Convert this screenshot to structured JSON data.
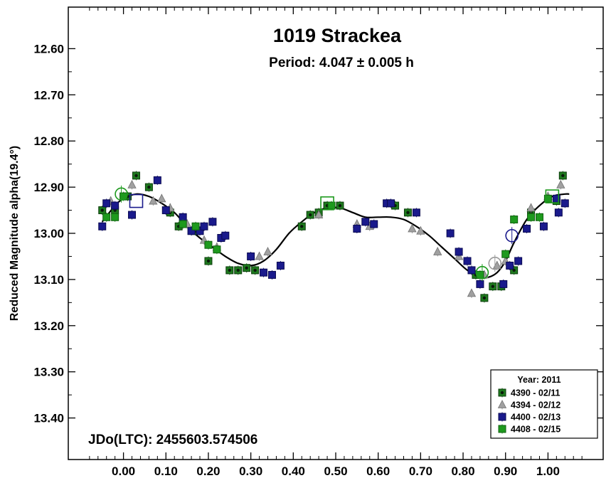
{
  "chart_data": {
    "type": "scatter",
    "title": "1019 Strackea",
    "subtitle": "Period: 4.047 ± 0.005 h",
    "xlabel": "",
    "ylabel": "Reduced Magnitude alpha(19.4°)",
    "annotation": "JDo(LTC): 2455603.574506",
    "xlim": [
      -0.13,
      1.13
    ],
    "ylim": [
      13.49,
      12.51
    ],
    "y_inverted": true,
    "grid": false,
    "legend_position": "bottom-right",
    "legend_title": "Year: 2011",
    "x_ticks": [
      "0.00",
      "0.10",
      "0.20",
      "0.30",
      "0.40",
      "0.50",
      "0.60",
      "0.70",
      "0.80",
      "0.90",
      "1.00"
    ],
    "x_tick_values": [
      0,
      0.1,
      0.2,
      0.3,
      0.4,
      0.5,
      0.6,
      0.7,
      0.8,
      0.9,
      1.0
    ],
    "y_ticks": [
      "12.60",
      "12.70",
      "12.80",
      "12.90",
      "13.00",
      "13.10",
      "13.20",
      "13.30",
      "13.40"
    ],
    "y_tick_values": [
      12.6,
      12.7,
      12.8,
      12.9,
      13.0,
      13.1,
      13.2,
      13.3,
      13.4
    ],
    "series": [
      {
        "name": "4390 - 02/11",
        "marker": "square-dot",
        "color": "#1e7a1e",
        "points": [
          [
            -0.05,
            12.95
          ],
          [
            -0.02,
            12.95
          ],
          [
            0.01,
            12.92
          ],
          [
            0.03,
            12.875
          ],
          [
            0.06,
            12.9
          ],
          [
            0.11,
            12.955
          ],
          [
            0.13,
            12.985
          ],
          [
            0.17,
            12.995
          ],
          [
            0.2,
            13.06
          ],
          [
            0.25,
            13.08
          ],
          [
            0.27,
            13.08
          ],
          [
            0.29,
            13.075
          ],
          [
            0.31,
            13.08
          ],
          [
            0.42,
            12.985
          ],
          [
            0.44,
            12.96
          ],
          [
            0.46,
            12.955
          ],
          [
            0.48,
            12.94
          ],
          [
            0.51,
            12.94
          ],
          [
            0.64,
            12.94
          ],
          [
            0.67,
            12.955
          ],
          [
            0.83,
            13.09
          ],
          [
            0.85,
            13.14
          ],
          [
            0.87,
            13.115
          ],
          [
            0.89,
            13.115
          ],
          [
            0.92,
            13.08
          ],
          [
            0.96,
            12.955
          ],
          [
            1.02,
            12.93
          ],
          [
            1.035,
            12.875
          ]
        ]
      },
      {
        "name": "4394 - 02/12",
        "marker": "triangle",
        "color": "#9a9a9a",
        "points": [
          [
            -0.03,
            12.93
          ],
          [
            0.02,
            12.895
          ],
          [
            0.07,
            12.93
          ],
          [
            0.09,
            12.925
          ],
          [
            0.11,
            12.945
          ],
          [
            0.15,
            12.98
          ],
          [
            0.19,
            13.015
          ],
          [
            0.22,
            13.03
          ],
          [
            0.32,
            13.05
          ],
          [
            0.34,
            13.04
          ],
          [
            0.46,
            12.96
          ],
          [
            0.55,
            12.98
          ],
          [
            0.58,
            12.985
          ],
          [
            0.68,
            12.99
          ],
          [
            0.7,
            12.995
          ],
          [
            0.74,
            13.04
          ],
          [
            0.79,
            13.05
          ],
          [
            0.82,
            13.13
          ],
          [
            0.85,
            13.09
          ],
          [
            0.88,
            13.07
          ],
          [
            0.9,
            13.06
          ],
          [
            0.96,
            12.945
          ],
          [
            1.0,
            12.92
          ],
          [
            1.03,
            12.895
          ]
        ]
      },
      {
        "name": "4400 - 02/13",
        "marker": "square",
        "color": "#1a1a8c",
        "points": [
          [
            -0.05,
            12.985
          ],
          [
            -0.04,
            12.935
          ],
          [
            -0.02,
            12.94
          ],
          [
            0.02,
            12.96
          ],
          [
            0.08,
            12.885
          ],
          [
            0.1,
            12.95
          ],
          [
            0.14,
            12.965
          ],
          [
            0.16,
            12.995
          ],
          [
            0.18,
            12.995
          ],
          [
            0.19,
            12.985
          ],
          [
            0.21,
            12.975
          ],
          [
            0.23,
            13.01
          ],
          [
            0.24,
            13.005
          ],
          [
            0.3,
            13.05
          ],
          [
            0.33,
            13.085
          ],
          [
            0.35,
            13.09
          ],
          [
            0.37,
            13.07
          ],
          [
            0.55,
            12.99
          ],
          [
            0.57,
            12.975
          ],
          [
            0.59,
            12.98
          ],
          [
            0.62,
            12.935
          ],
          [
            0.63,
            12.935
          ],
          [
            0.69,
            12.955
          ],
          [
            0.77,
            13.0
          ],
          [
            0.79,
            13.04
          ],
          [
            0.81,
            13.06
          ],
          [
            0.82,
            13.08
          ],
          [
            0.84,
            13.11
          ],
          [
            0.895,
            13.11
          ],
          [
            0.91,
            13.07
          ],
          [
            0.93,
            13.06
          ],
          [
            0.95,
            12.99
          ],
          [
            0.99,
            12.985
          ],
          [
            1.02,
            12.925
          ],
          [
            1.025,
            12.955
          ],
          [
            1.04,
            12.935
          ]
        ]
      },
      {
        "name": "4408 - 02/15",
        "marker": "square-light",
        "color": "#1e9a1e",
        "points": [
          [
            -0.04,
            12.965
          ],
          [
            -0.02,
            12.965
          ],
          [
            0.0,
            12.92
          ],
          [
            0.14,
            12.98
          ],
          [
            0.17,
            12.985
          ],
          [
            0.2,
            13.025
          ],
          [
            0.22,
            13.035
          ],
          [
            0.49,
            12.94
          ],
          [
            0.84,
            13.09
          ],
          [
            0.9,
            13.045
          ],
          [
            0.92,
            12.97
          ],
          [
            0.96,
            12.965
          ],
          [
            0.98,
            12.965
          ],
          [
            1.0,
            12.925
          ]
        ]
      }
    ],
    "fit_curve": {
      "x": [
        -0.05,
        -0.02,
        0.0,
        0.03,
        0.06,
        0.09,
        0.12,
        0.15,
        0.18,
        0.21,
        0.24,
        0.27,
        0.3,
        0.33,
        0.36,
        0.39,
        0.42,
        0.45,
        0.48,
        0.51,
        0.54,
        0.57,
        0.6,
        0.63,
        0.66,
        0.69,
        0.72,
        0.75,
        0.78,
        0.81,
        0.84,
        0.86,
        0.88,
        0.9,
        0.92,
        0.95,
        0.98,
        1.01,
        1.04,
        1.05
      ],
      "y": [
        12.975,
        12.94,
        12.925,
        12.915,
        12.92,
        12.935,
        12.955,
        12.985,
        13.01,
        13.03,
        13.05,
        13.065,
        13.07,
        13.06,
        13.035,
        13.0,
        12.975,
        12.955,
        12.945,
        12.945,
        12.955,
        12.965,
        12.965,
        12.965,
        12.97,
        12.985,
        13.005,
        13.03,
        13.055,
        13.08,
        13.095,
        13.095,
        13.085,
        13.06,
        13.02,
        12.97,
        12.94,
        12.92,
        12.915,
        12.915
      ]
    },
    "highlight_markers": [
      {
        "series": "4400 - 02/13",
        "shape": "square",
        "x": 0.03,
        "y": 12.93
      },
      {
        "series": "4408 - 02/15",
        "shape": "square",
        "x": 0.48,
        "y": 12.935
      },
      {
        "series": "4408 - 02/15",
        "shape": "square",
        "x": 1.01,
        "y": 12.92
      },
      {
        "series": "4408 - 02/15",
        "shape": "circle",
        "x": -0.005,
        "y": 12.915
      },
      {
        "series": "4394 - 02/12",
        "shape": "circle",
        "x": 0.875,
        "y": 13.065
      },
      {
        "series": "4400 - 02/13",
        "shape": "circle",
        "x": 0.915,
        "y": 13.005
      },
      {
        "series": "4408 - 02/15",
        "shape": "circle",
        "x": 0.845,
        "y": 13.085
      }
    ]
  }
}
